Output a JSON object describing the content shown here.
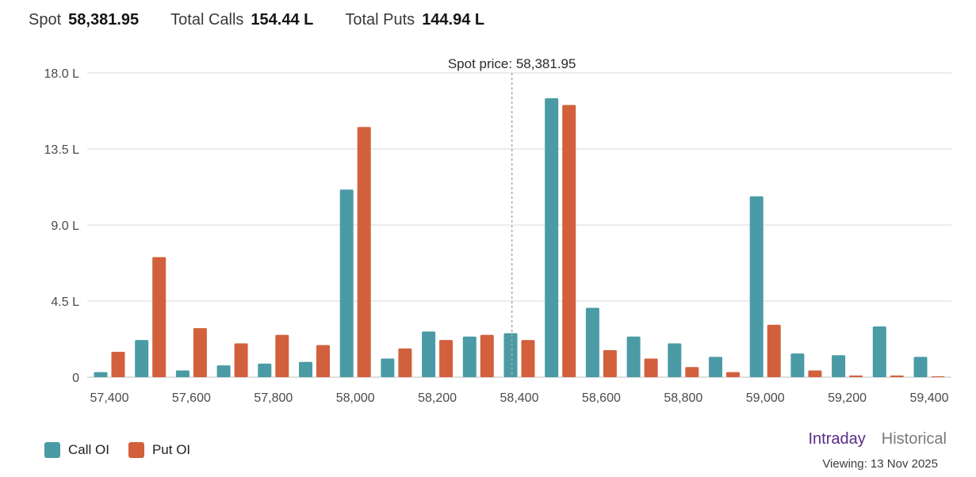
{
  "header": {
    "spot_label": "Spot",
    "spot_value": "58,381.95",
    "calls_label": "Total Calls",
    "calls_value": "154.44 L",
    "puts_label": "Total Puts",
    "puts_value": "144.94 L"
  },
  "legend": {
    "call_label": "Call OI",
    "put_label": "Put OI"
  },
  "tabs": {
    "intraday": "Intraday",
    "historical": "Historical"
  },
  "viewing": "Viewing: 13 Nov 2025",
  "colors": {
    "call": "#4a9ba5",
    "put": "#d2603c",
    "active_tab": "#5b2a86",
    "grid": "#d9d9d9"
  },
  "chart_data": {
    "type": "bar",
    "title": "",
    "xlabel": "",
    "ylabel": "",
    "ylim": [
      0,
      18
    ],
    "y_ticks": [
      0,
      4.5,
      9.0,
      13.5,
      18.0
    ],
    "y_tick_labels": [
      "0",
      "4.5 L",
      "9.0 L",
      "13.5 L",
      "18.0 L"
    ],
    "x_ticks": [
      "57,400",
      "57,600",
      "57,800",
      "58,000",
      "58,200",
      "58,400",
      "58,600",
      "58,800",
      "59,000",
      "59,200",
      "59,400"
    ],
    "strikes": [
      57400,
      57500,
      57600,
      57700,
      57800,
      57900,
      58000,
      58100,
      58200,
      58300,
      58400,
      58500,
      58600,
      58700,
      58800,
      58900,
      59000,
      59100,
      59200,
      59300,
      59400
    ],
    "series": [
      {
        "name": "Call OI",
        "values": [
          0.3,
          2.2,
          0.4,
          0.7,
          0.8,
          0.9,
          11.1,
          1.1,
          2.7,
          2.4,
          2.6,
          16.5,
          4.1,
          2.4,
          2.0,
          1.2,
          10.7,
          1.4,
          1.3,
          3.0,
          1.2
        ]
      },
      {
        "name": "Put OI",
        "values": [
          1.5,
          7.1,
          2.9,
          2.0,
          2.5,
          1.9,
          14.8,
          1.7,
          2.2,
          2.5,
          2.2,
          16.1,
          1.6,
          1.1,
          0.6,
          0.3,
          3.1,
          0.4,
          0.1,
          0.1,
          0.05
        ]
      }
    ],
    "annotation": {
      "label": "Spot price: 58,381.95",
      "x": 58381.95
    },
    "grid": true,
    "legend_position": "bottom-left"
  }
}
